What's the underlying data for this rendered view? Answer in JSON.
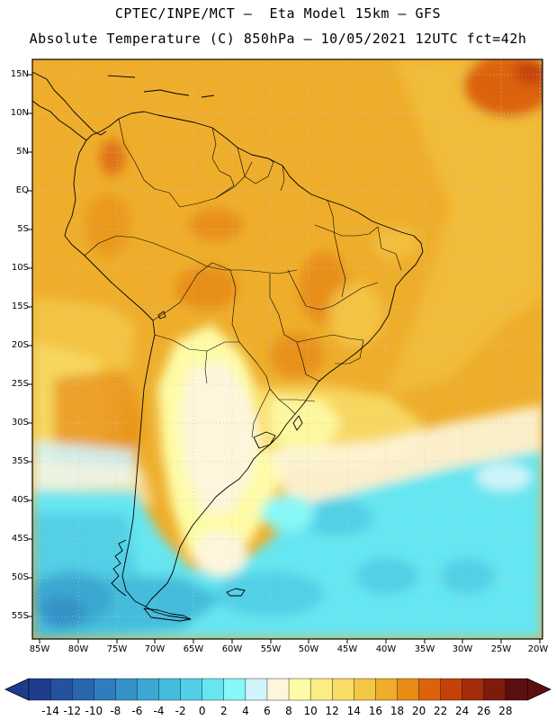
{
  "header": {
    "line1": "CPTEC/INPE/MCT –  Eta Model 15km – GFS",
    "line2": "Absolute Temperature (C) 850hPa – 10/05/2021 12UTC fct=42h"
  },
  "map": {
    "lat_labels": [
      "15N",
      "10N",
      "5N",
      "EQ",
      "5S",
      "10S",
      "15S",
      "20S",
      "25S",
      "30S",
      "35S",
      "40S",
      "45S",
      "50S",
      "55S"
    ],
    "lon_labels": [
      "85W",
      "80W",
      "75W",
      "70W",
      "65W",
      "60W",
      "55W",
      "50W",
      "45W",
      "40W",
      "35W",
      "30W",
      "25W",
      "20W"
    ]
  },
  "colorbar": {
    "labels": [
      "-14",
      "-12",
      "-10",
      "-8",
      "-6",
      "-4",
      "-2",
      "0",
      "2",
      "4",
      "6",
      "8",
      "10",
      "12",
      "14",
      "16",
      "18",
      "20",
      "22",
      "24",
      "26",
      "28"
    ],
    "colors": [
      "#1f3c8c",
      "#25529e",
      "#2a66ae",
      "#2f7cbe",
      "#3592c8",
      "#3aa8d2",
      "#45bcdc",
      "#52cfe6",
      "#66e6f0",
      "#88f7f7",
      "#cff4fb",
      "#fdf6dc",
      "#fefba6",
      "#fcec85",
      "#f8dc66",
      "#f4c646",
      "#eeae2b",
      "#e88c16",
      "#dc630b",
      "#c4420a",
      "#a22d0c",
      "#7d1c0c",
      "#5b0f10"
    ]
  }
}
